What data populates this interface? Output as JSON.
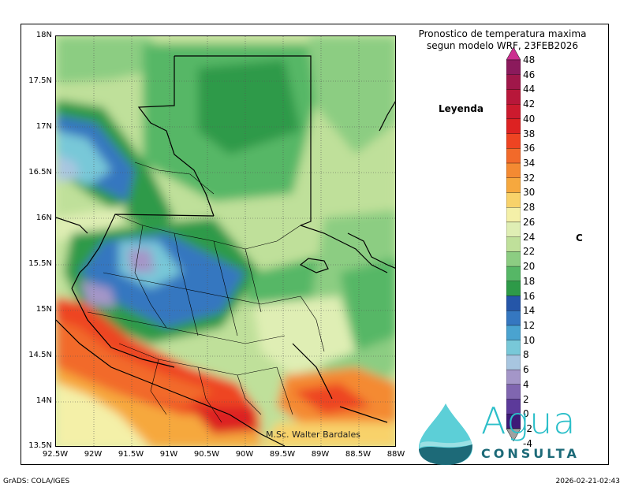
{
  "title_line1": "Pronostico de temperatura maxima",
  "title_line2": "segun modelo WRF, 23FEB2026",
  "legend_title": "Leyenda",
  "units": "C",
  "author": "M.Sc. Walter Bardales",
  "footer_left": "GrADS: COLA/IGES",
  "footer_right": "2026-02-21-02:43",
  "logo": {
    "word": "Agua",
    "sub": "CONSULTA"
  },
  "map": {
    "lat_labels": [
      "18N",
      "17.5N",
      "17N",
      "16.5N",
      "16N",
      "15.5N",
      "15N",
      "14.5N",
      "14N",
      "13.5N"
    ],
    "lon_labels": [
      "92.5W",
      "92W",
      "91.5W",
      "91W",
      "90.5W",
      "90W",
      "89.5W",
      "89W",
      "88.5W",
      "88W"
    ]
  },
  "colorbar": {
    "labels": [
      "48",
      "46",
      "44",
      "42",
      "40",
      "38",
      "36",
      "34",
      "32",
      "30",
      "28",
      "26",
      "24",
      "22",
      "20",
      "18",
      "16",
      "14",
      "12",
      "10",
      "8",
      "6",
      "4",
      "2",
      "0",
      "-2",
      "-4"
    ],
    "colors": [
      "#8b1a5c",
      "#a0174a",
      "#b8173a",
      "#cc1a2e",
      "#dd2222",
      "#ee4422",
      "#f26a2a",
      "#f48a32",
      "#f6a83e",
      "#f8d26a",
      "#f4f0a8",
      "#dfeeb4",
      "#bfe09a",
      "#8ccd82",
      "#56b766",
      "#2e9a48",
      "#2556a8",
      "#3577c0",
      "#4aa3d0",
      "#78c8d8",
      "#a8c6e0",
      "#a496c8",
      "#8066b0",
      "#5c3a9a",
      "#3e1a78"
    ],
    "top_color": "#cc2f90",
    "bottom_color": "#a0a0a0"
  }
}
